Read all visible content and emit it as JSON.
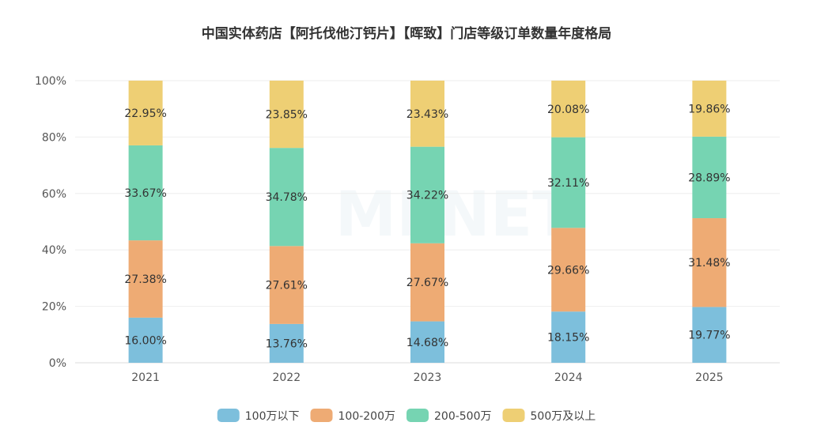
{
  "chart_data": {
    "type": "bar",
    "stacked": true,
    "title": "中国实体药店【阿托伐他汀钙片】【晖致】门店等级订单数量年度格局",
    "watermark": "MENET",
    "categories": [
      "2021",
      "2022",
      "2023",
      "2024",
      "2025"
    ],
    "series": [
      {
        "name": "100万以下",
        "color": "#7dbfdc",
        "values": [
          16.0,
          13.76,
          14.68,
          18.15,
          19.77
        ]
      },
      {
        "name": "100-200万",
        "color": "#eeab74",
        "values": [
          27.38,
          27.61,
          27.67,
          29.66,
          31.48
        ]
      },
      {
        "name": "200-500万",
        "color": "#76d4b2",
        "values": [
          33.67,
          34.78,
          34.22,
          32.11,
          28.89
        ]
      },
      {
        "name": "500万及以上",
        "color": "#eecf74",
        "values": [
          22.95,
          23.85,
          23.43,
          20.08,
          19.86
        ]
      }
    ],
    "value_suffix": "%",
    "ylim": [
      0,
      100
    ],
    "yticks": [
      "0%",
      "20%",
      "40%",
      "60%",
      "80%",
      "100%"
    ],
    "grid": true,
    "legend_position": "bottom-center"
  }
}
